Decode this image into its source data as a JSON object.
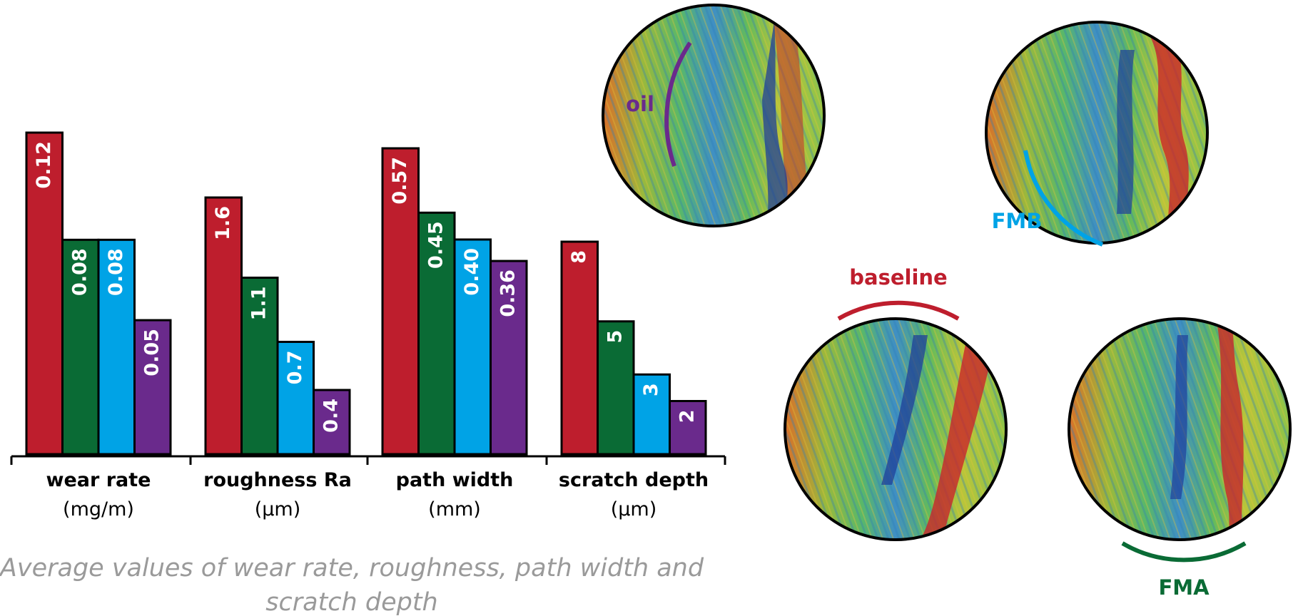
{
  "colors": {
    "baseline": "#BE1E2D",
    "FMA": "#0A6B35",
    "FMB": "#00A3E6",
    "oil": "#6A2A8C"
  },
  "chart_data": {
    "type": "bar",
    "groups": [
      {
        "title": "wear rate",
        "unit": "(mg/m)",
        "values": [
          0.12,
          0.08,
          0.08,
          0.05
        ],
        "labels": [
          "0.12",
          "0.08",
          "0.08",
          "0.05"
        ]
      },
      {
        "title": "roughness Ra",
        "unit": "(μm)",
        "values": [
          1.6,
          1.1,
          0.7,
          0.4
        ],
        "labels": [
          "1.6",
          "1.1",
          "0.7",
          "0.4"
        ]
      },
      {
        "title": "path width",
        "unit": "(mm)",
        "values": [
          0.57,
          0.45,
          0.4,
          0.36
        ],
        "labels": [
          "0.57",
          "0.45",
          "0.40",
          "0.36"
        ]
      },
      {
        "title": "scratch depth",
        "unit": "(μm)",
        "values": [
          8,
          5,
          3,
          2
        ],
        "labels": [
          "8",
          "5",
          "3",
          "2"
        ]
      }
    ],
    "series_order": [
      "baseline",
      "FMA",
      "FMB",
      "oil"
    ],
    "caption": "Average values of wear rate, roughness, path width and scratch depth"
  },
  "micrographs": [
    {
      "label": "oil",
      "color_key": "oil",
      "description_icon": "surface-profile-image"
    },
    {
      "label": "FMB",
      "color_key": "FMB",
      "description_icon": "surface-profile-image"
    },
    {
      "label": "baseline",
      "color_key": "baseline",
      "description_icon": "surface-profile-image"
    },
    {
      "label": "FMA",
      "color_key": "FMA",
      "description_icon": "surface-profile-image"
    }
  ]
}
